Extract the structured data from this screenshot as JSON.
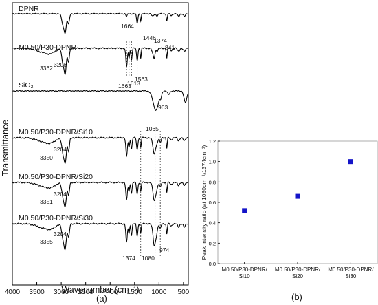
{
  "panel_a": {
    "ylabel": "Transmittance",
    "xlabel": "Wavenumber (cm⁻¹)",
    "caption": "(a)",
    "x_ticks": [
      "4000",
      "3500",
      "3000",
      "2500",
      "2000",
      "1500",
      "1000",
      "500"
    ],
    "spectra": [
      {
        "label": "DPNR",
        "peaks": [
          "1664",
          "1446",
          "1374",
          "841"
        ]
      },
      {
        "label": "M0.50/P30-DPNR",
        "peaks": [
          "3362",
          "3206",
          "1663",
          "1613",
          "1563"
        ]
      },
      {
        "label": "SiO₂",
        "peaks": [
          "963",
          "1065"
        ]
      },
      {
        "label": "M0.50/P30-DPNR/Si10",
        "peaks": [
          "3350",
          "3204"
        ]
      },
      {
        "label": "M0.50/P30-DPNR/Si20",
        "peaks": [
          "3351",
          "3204"
        ]
      },
      {
        "label": "M0.50/P30-DPNR/Si30",
        "peaks": [
          "3355",
          "3204",
          "1374",
          "1080",
          "974"
        ]
      }
    ]
  },
  "panel_b": {
    "caption": "(b)",
    "ylabel": "Peak intensity ratio (at 1080cm⁻¹/1374cm⁻¹)"
  },
  "chart_data": [
    {
      "type": "line",
      "title": "",
      "xlabel": "Wavenumber (cm⁻¹)",
      "ylabel": "Transmittance",
      "xlim": [
        4000,
        400
      ],
      "x_ticks": [
        4000,
        3500,
        3000,
        2500,
        2000,
        1500,
        1000,
        500
      ],
      "series": [
        {
          "name": "DPNR",
          "peak_positions": [
            1664,
            1446,
            1374,
            841
          ]
        },
        {
          "name": "M0.50/P30-DPNR",
          "peak_positions": [
            3362,
            3206,
            1663,
            1613,
            1563
          ]
        },
        {
          "name": "SiO₂",
          "peak_positions": [
            1065,
            963
          ]
        },
        {
          "name": "M0.50/P30-DPNR/Si10",
          "peak_positions": [
            3350,
            3204
          ]
        },
        {
          "name": "M0.50/P30-DPNR/Si20",
          "peak_positions": [
            3351,
            3204
          ]
        },
        {
          "name": "M0.50/P30-DPNR/Si30",
          "peak_positions": [
            3355,
            3204,
            1374,
            1080,
            974
          ]
        }
      ],
      "reference_lines_cm-1": [
        1374,
        1080,
        974
      ]
    },
    {
      "type": "scatter",
      "title": "",
      "xlabel": "",
      "ylabel": "Peak intensity ratio (at 1080cm⁻¹/1374cm⁻¹)",
      "categories": [
        "M0.50/P30-DPNR/ Si10",
        "M0.50/P30-DPNR/ Si20",
        "M0.50/P30-DPNR/ Si30"
      ],
      "values": [
        0.52,
        0.66,
        1.0
      ],
      "ylim": [
        0,
        1.2
      ],
      "y_ticks": [
        "0.0",
        "0.2",
        "0.4",
        "0.6",
        "0.8",
        "1.0",
        "1.2"
      ],
      "marker_color": "#1414c8"
    }
  ]
}
